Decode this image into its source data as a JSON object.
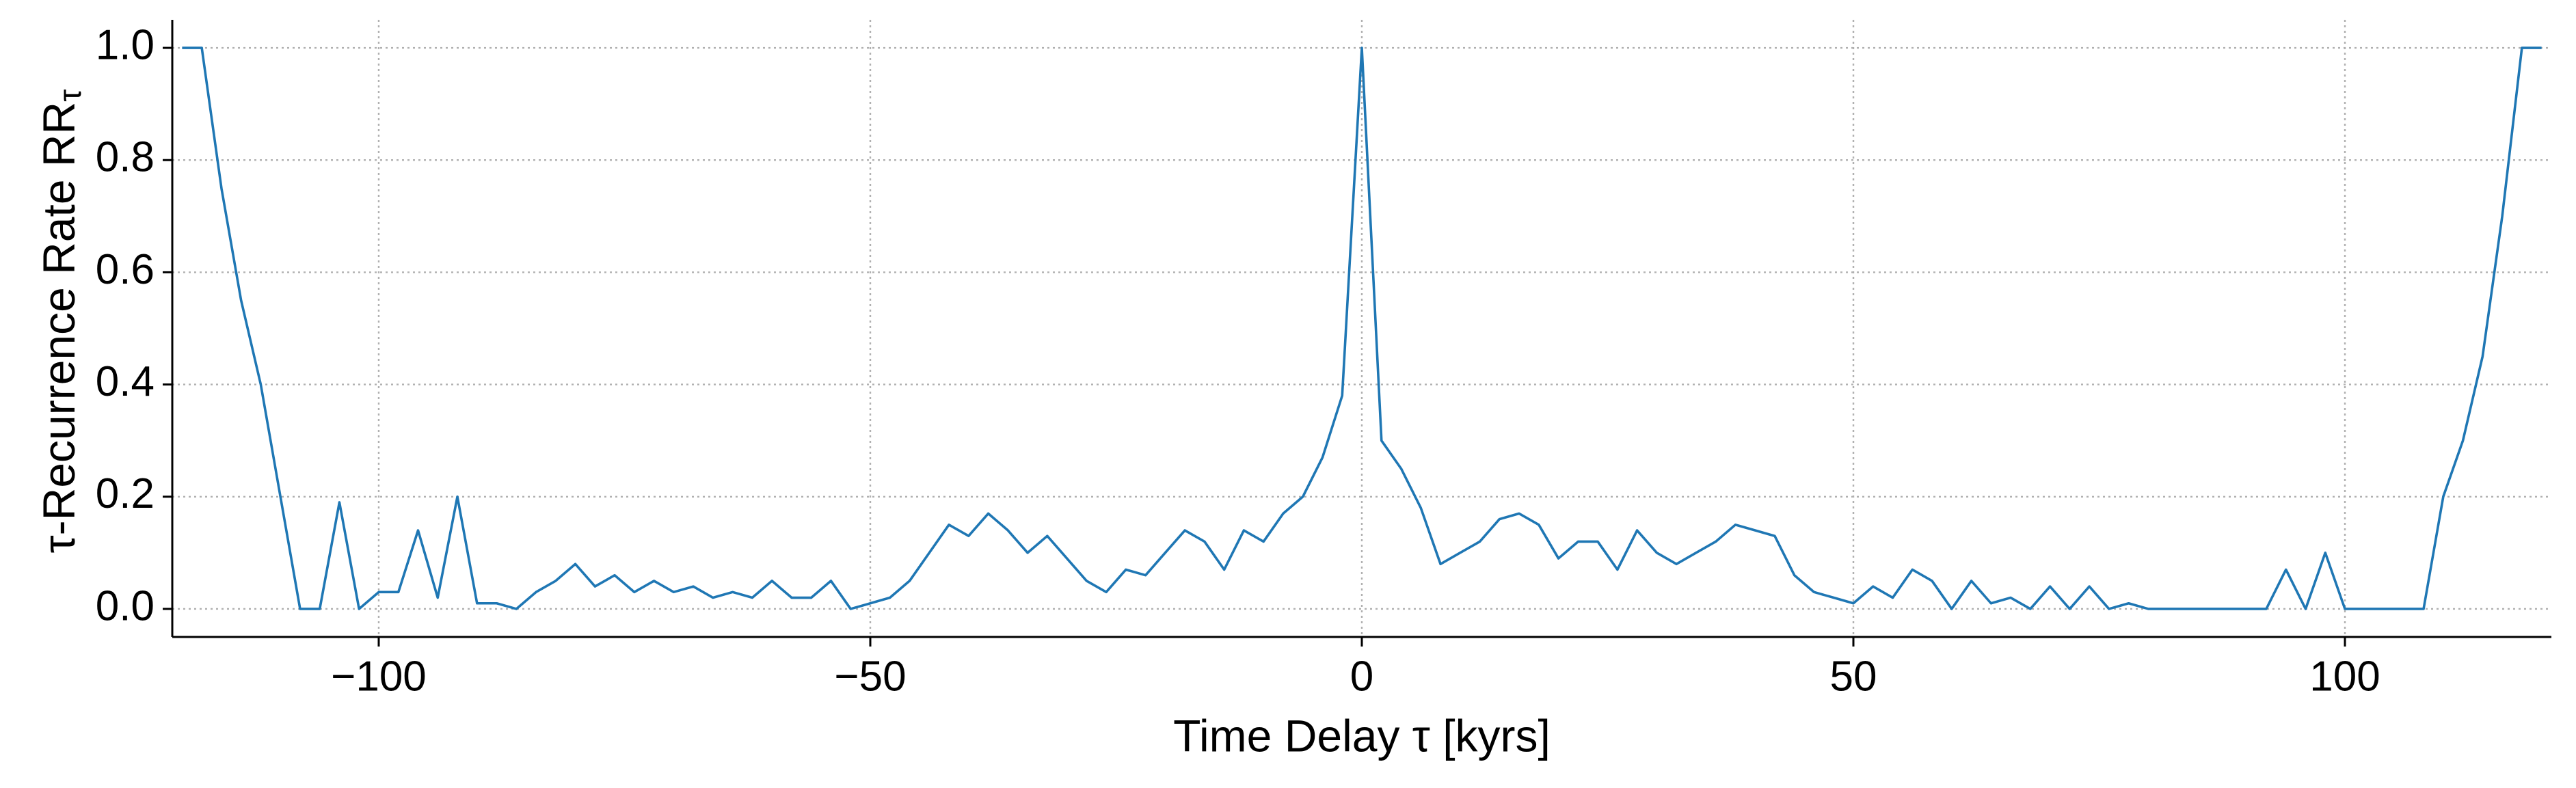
{
  "chart_data": {
    "type": "line",
    "xlabel": "Time Delay τ [kyrs]",
    "ylabel": "τ-Recurrence Rate RR",
    "ylabel_subscript": "τ",
    "color": "#1f77b4",
    "grid": true,
    "xlim": [
      -121,
      121
    ],
    "ylim": [
      -0.05,
      1.05
    ],
    "xticks": [
      {
        "value": -100,
        "label": "−100"
      },
      {
        "value": -50,
        "label": "−50"
      },
      0,
      50,
      100
    ],
    "yticks": [
      {
        "value": 0,
        "label": "0.0"
      },
      {
        "value": 0.2,
        "label": "0.2"
      },
      {
        "value": 0.4,
        "label": "0.4"
      },
      {
        "value": 0.6,
        "label": "0.6"
      },
      {
        "value": 0.8,
        "label": "0.8"
      },
      {
        "value": 1,
        "label": "1.0"
      }
    ],
    "x": [
      -120,
      -118,
      -116,
      -114,
      -112,
      -110,
      -108,
      -106,
      -104,
      -102,
      -100,
      -98,
      -96,
      -94,
      -92,
      -90,
      -88,
      -86,
      -84,
      -82,
      -80,
      -78,
      -76,
      -74,
      -72,
      -70,
      -68,
      -66,
      -64,
      -62,
      -60,
      -58,
      -56,
      -54,
      -52,
      -50,
      -48,
      -46,
      -44,
      -42,
      -40,
      -38,
      -36,
      -34,
      -32,
      -30,
      -28,
      -26,
      -24,
      -22,
      -20,
      -18,
      -16,
      -14,
      -12,
      -10,
      -8,
      -6,
      -4,
      -2,
      0,
      2,
      4,
      6,
      8,
      10,
      12,
      14,
      16,
      18,
      20,
      22,
      24,
      26,
      28,
      30,
      32,
      34,
      36,
      38,
      40,
      42,
      44,
      46,
      48,
      50,
      52,
      54,
      56,
      58,
      60,
      62,
      64,
      66,
      68,
      70,
      72,
      74,
      76,
      78,
      80,
      82,
      84,
      86,
      88,
      90,
      92,
      94,
      96,
      98,
      100,
      102,
      104,
      106,
      108,
      110,
      112,
      114,
      116,
      118,
      120
    ],
    "values": [
      1.0,
      1.0,
      0.75,
      0.55,
      0.4,
      0.2,
      0.0,
      0.0,
      0.19,
      0.0,
      0.03,
      0.03,
      0.14,
      0.02,
      0.2,
      0.01,
      0.01,
      0.0,
      0.03,
      0.05,
      0.08,
      0.04,
      0.06,
      0.03,
      0.05,
      0.03,
      0.04,
      0.02,
      0.03,
      0.02,
      0.05,
      0.02,
      0.02,
      0.05,
      0.0,
      0.01,
      0.02,
      0.05,
      0.1,
      0.15,
      0.13,
      0.17,
      0.14,
      0.1,
      0.13,
      0.09,
      0.05,
      0.03,
      0.07,
      0.06,
      0.1,
      0.14,
      0.12,
      0.07,
      0.14,
      0.12,
      0.17,
      0.2,
      0.27,
      0.38,
      1.0,
      0.3,
      0.25,
      0.18,
      0.08,
      0.1,
      0.12,
      0.16,
      0.17,
      0.15,
      0.09,
      0.12,
      0.12,
      0.07,
      0.14,
      0.1,
      0.08,
      0.1,
      0.12,
      0.15,
      0.14,
      0.13,
      0.06,
      0.03,
      0.02,
      0.01,
      0.04,
      0.02,
      0.07,
      0.05,
      0.0,
      0.05,
      0.01,
      0.02,
      0.0,
      0.04,
      0.0,
      0.04,
      0.0,
      0.01,
      0.0,
      0.0,
      0.0,
      0.0,
      0.0,
      0.0,
      0.0,
      0.07,
      0.0,
      0.1,
      0.0,
      0.0,
      0.0,
      0.0,
      0.0,
      0.2,
      0.3,
      0.45,
      0.7,
      1.0,
      1.0
    ]
  }
}
